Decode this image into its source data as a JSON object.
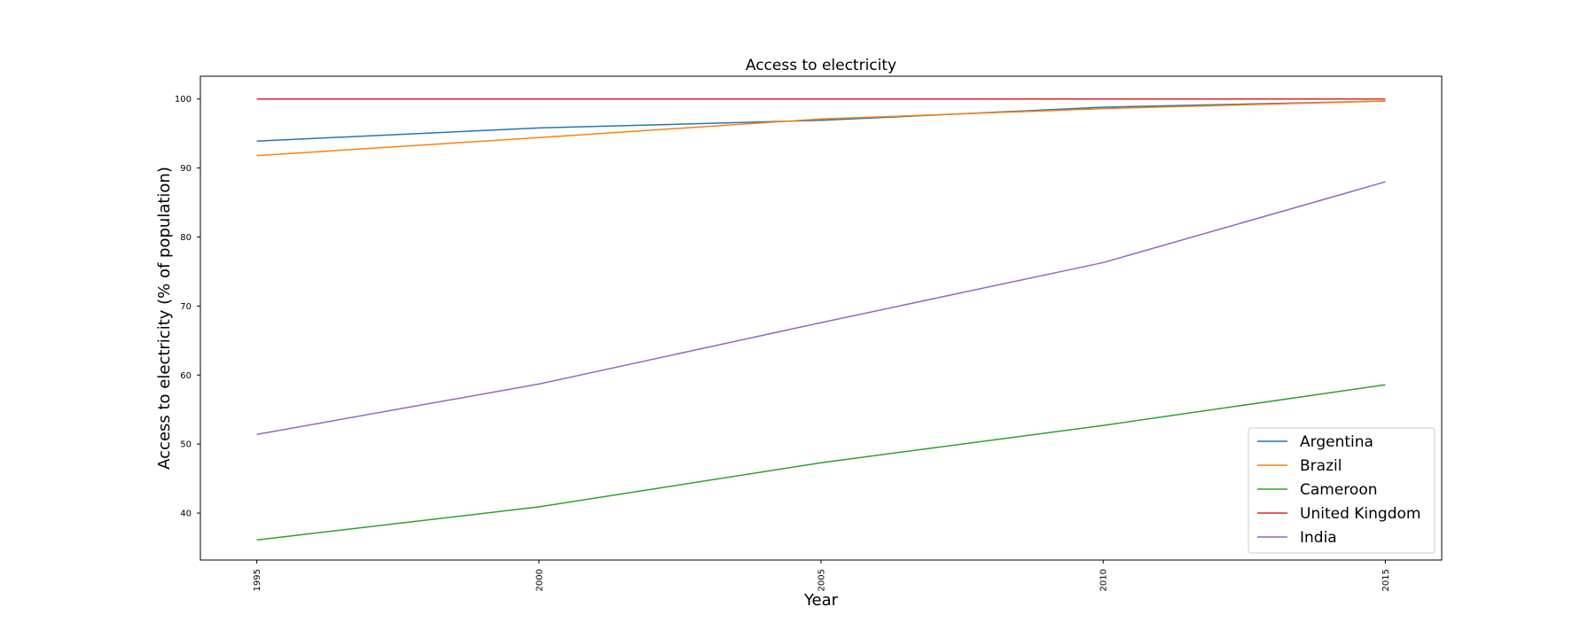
{
  "chart_data": {
    "type": "line",
    "title": "Access to electricity",
    "xlabel": "Year",
    "ylabel": "Access to electricity (% of population)",
    "x": [
      1995,
      2000,
      2005,
      2010,
      2015
    ],
    "xticks": [
      "1995",
      "2000",
      "2005",
      "2010",
      "2015"
    ],
    "yticks": [
      40,
      50,
      60,
      70,
      80,
      90,
      100
    ],
    "xlim": [
      1994,
      2016
    ],
    "ylim": [
      33.2,
      103.3
    ],
    "grid": false,
    "legend_position": "lower-right",
    "series": [
      {
        "name": "Argentina",
        "color": "#1f77b4",
        "values": [
          93.9,
          95.8,
          96.9,
          98.8,
          99.7
        ]
      },
      {
        "name": "Brazil",
        "color": "#ff7f0e",
        "values": [
          91.8,
          94.4,
          97.1,
          98.6,
          99.7
        ]
      },
      {
        "name": "Cameroon",
        "color": "#2ca02c",
        "values": [
          36.1,
          40.9,
          47.3,
          52.7,
          58.6
        ]
      },
      {
        "name": "United Kingdom",
        "color": "#d62728",
        "values": [
          100,
          100,
          100,
          100,
          100
        ]
      },
      {
        "name": "India",
        "color": "#9467bd",
        "values": [
          51.4,
          58.7,
          67.6,
          76.3,
          88.0
        ]
      }
    ]
  }
}
